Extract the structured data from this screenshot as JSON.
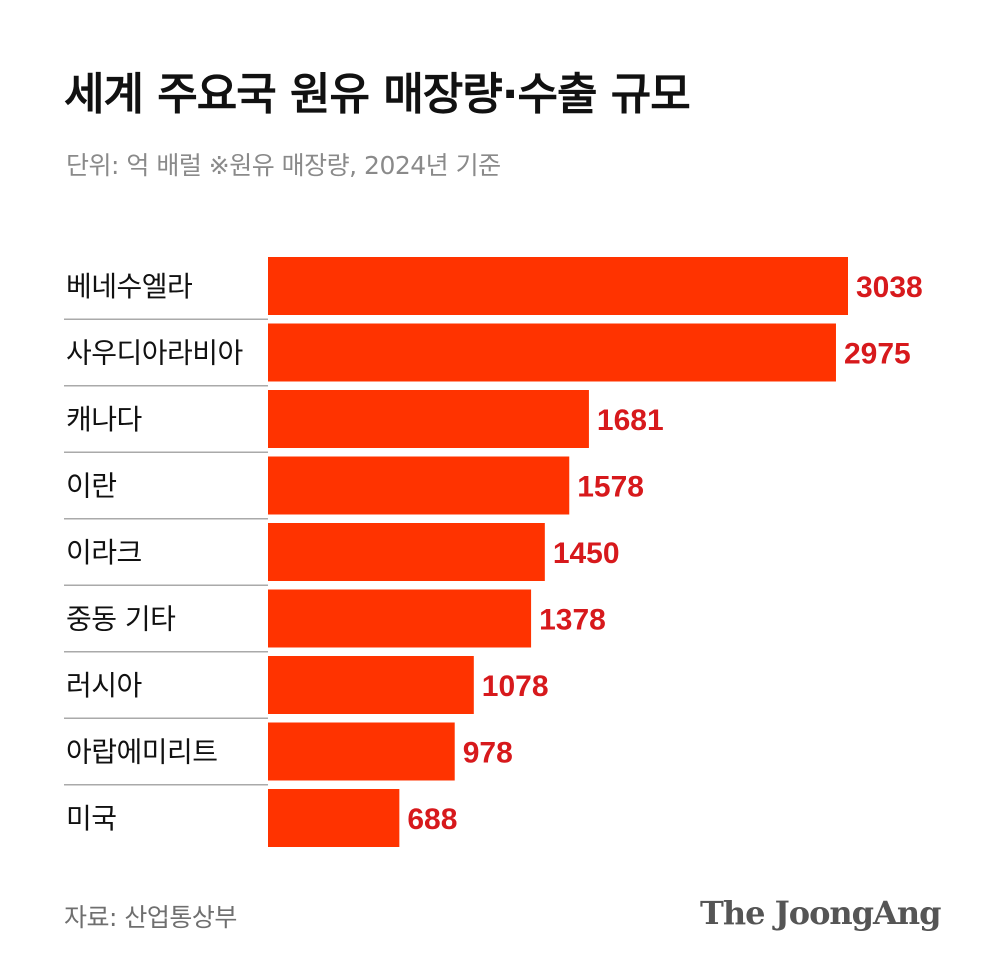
{
  "header": {
    "title": "세계 주요국 원유 매장량·수출 규모",
    "subtitle": "단위: 억 배럴  ※원유 매장량, 2024년 기준"
  },
  "footer": {
    "source": "자료: 산업통상부",
    "brand": "The JoongAng"
  },
  "colors": {
    "bar": "#ff3300",
    "value_label": "#d7191c",
    "divider": "#aaaaaa"
  },
  "chart_data": {
    "type": "bar",
    "orientation": "horizontal",
    "title": "세계 주요국 원유 매장량·수출 규모",
    "subtitle": "단위: 억 배럴  ※원유 매장량, 2024년 기준",
    "categories": [
      "베네수엘라",
      "사우디아라비아",
      "캐나다",
      "이란",
      "이라크",
      "중동 기타",
      "러시아",
      "아랍에미리트",
      "미국"
    ],
    "values": [
      3038,
      2975,
      1681,
      1578,
      1450,
      1378,
      1078,
      978,
      688
    ],
    "data_labels": [
      "3038",
      "2975",
      "1681",
      "1578",
      "1450",
      "1378",
      "1078",
      "978",
      "688"
    ],
    "xlim": [
      0,
      3038
    ],
    "grid": false,
    "legend": "none"
  }
}
